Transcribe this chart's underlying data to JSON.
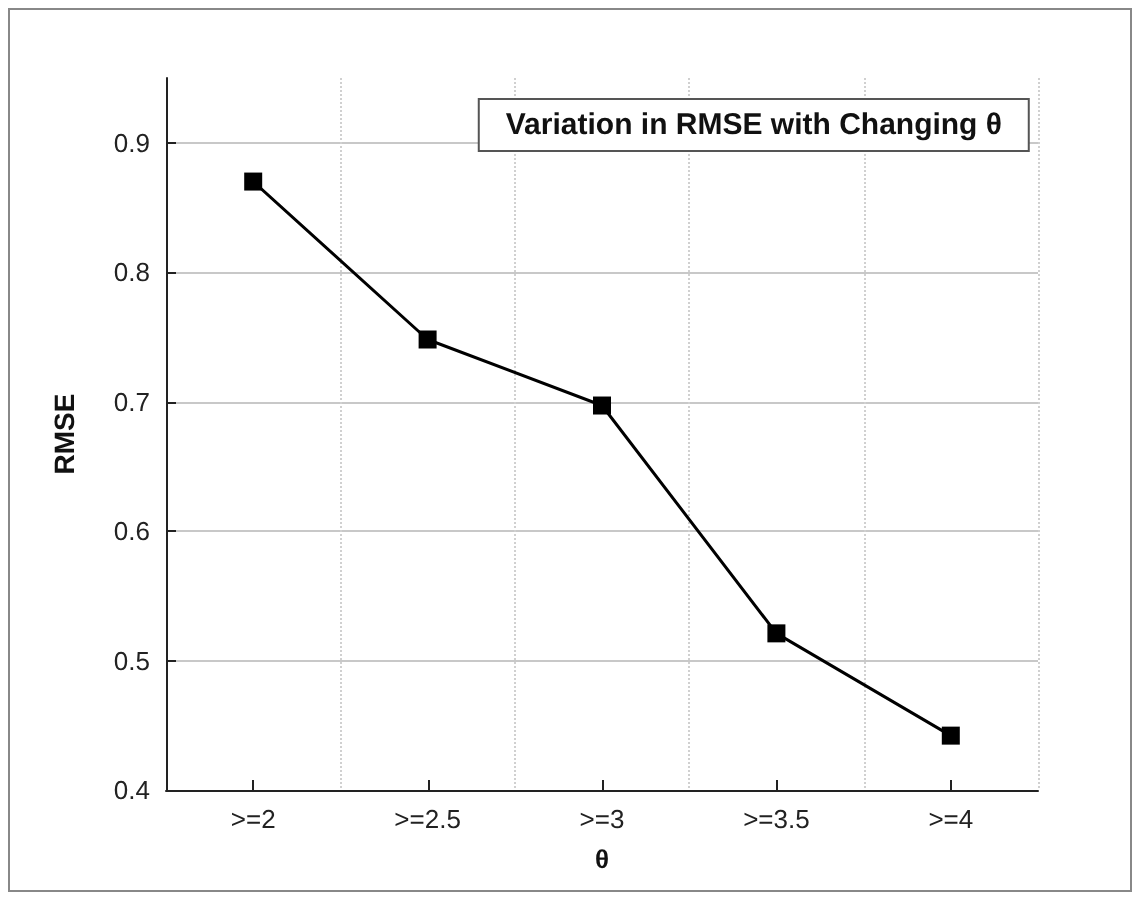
{
  "chart_data": {
    "type": "line",
    "title": "Variation in RMSE with Changing θ",
    "xlabel": "θ",
    "ylabel": "RMSE",
    "categories": [
      ">=2",
      ">=2.5",
      ">=3",
      ">=3.5",
      ">=4"
    ],
    "series": [
      {
        "color": "#000000",
        "values": [
          0.87,
          0.748,
          0.697,
          0.521,
          0.442
        ]
      }
    ],
    "ylim": [
      0.4,
      0.95
    ],
    "yticks": [
      0.4,
      0.5,
      0.6,
      0.7,
      0.8,
      0.9
    ],
    "grid": true,
    "marker": "square",
    "line_style": "solid"
  }
}
